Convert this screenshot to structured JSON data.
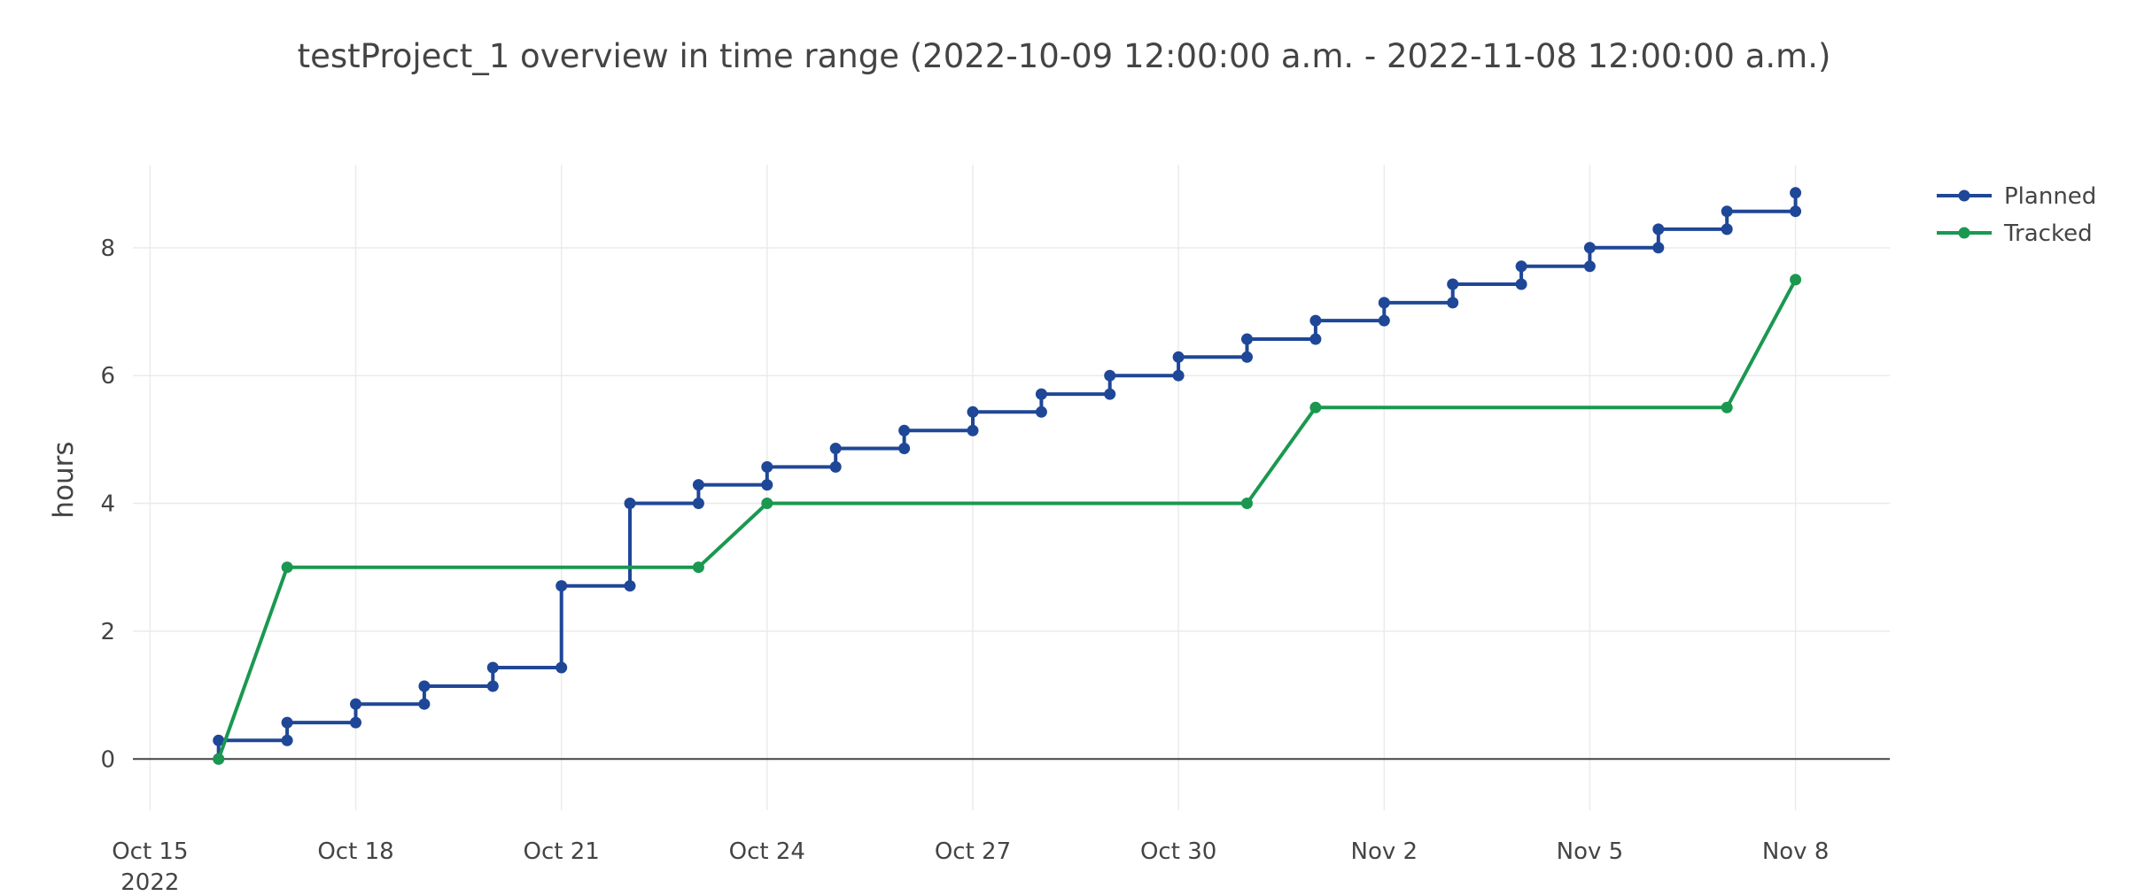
{
  "chart_data": {
    "type": "line",
    "title": "testProject_1 overview in time range (2022-10-09 12:00:00 a.m. - 2022-11-08 12:00:00 a.m.)",
    "xlabel": "",
    "ylabel": "hours",
    "x_ticks": [
      "Oct 15",
      "Oct 18",
      "Oct 21",
      "Oct 24",
      "Oct 27",
      "Oct 30",
      "Nov 2",
      "Nov 5",
      "Nov 8"
    ],
    "x_tick_year": "2022",
    "y_ticks": [
      "0",
      "2",
      "4",
      "6",
      "8"
    ],
    "xlim": [
      "2022-10-14T18:00",
      "2022-11-09T09:00"
    ],
    "ylim": [
      -0.8,
      9.3
    ],
    "grid": true,
    "legend_position": "top-right",
    "series": [
      {
        "name": "Planned",
        "color": "#1f4797",
        "points": [
          [
            "2022-10-16",
            0
          ],
          [
            "2022-10-16",
            0.29
          ],
          [
            "2022-10-17",
            0.29
          ],
          [
            "2022-10-17",
            0.57
          ],
          [
            "2022-10-18",
            0.57
          ],
          [
            "2022-10-18",
            0.86
          ],
          [
            "2022-10-19",
            0.86
          ],
          [
            "2022-10-19",
            1.14
          ],
          [
            "2022-10-20",
            1.14
          ],
          [
            "2022-10-20",
            1.43
          ],
          [
            "2022-10-21",
            1.43
          ],
          [
            "2022-10-21",
            2.71
          ],
          [
            "2022-10-22",
            2.71
          ],
          [
            "2022-10-22",
            4.0
          ],
          [
            "2022-10-23",
            4.0
          ],
          [
            "2022-10-23",
            4.29
          ],
          [
            "2022-10-24",
            4.29
          ],
          [
            "2022-10-24",
            4.57
          ],
          [
            "2022-10-25",
            4.57
          ],
          [
            "2022-10-25",
            4.86
          ],
          [
            "2022-10-26",
            4.86
          ],
          [
            "2022-10-26",
            5.14
          ],
          [
            "2022-10-27",
            5.14
          ],
          [
            "2022-10-27",
            5.43
          ],
          [
            "2022-10-28",
            5.43
          ],
          [
            "2022-10-28",
            5.71
          ],
          [
            "2022-10-29",
            5.71
          ],
          [
            "2022-10-29",
            6.0
          ],
          [
            "2022-10-30",
            6.0
          ],
          [
            "2022-10-30",
            6.29
          ],
          [
            "2022-10-31",
            6.29
          ],
          [
            "2022-10-31",
            6.57
          ],
          [
            "2022-11-01",
            6.57
          ],
          [
            "2022-11-01",
            6.86
          ],
          [
            "2022-11-02",
            6.86
          ],
          [
            "2022-11-02",
            7.14
          ],
          [
            "2022-11-03",
            7.14
          ],
          [
            "2022-11-03",
            7.43
          ],
          [
            "2022-11-04",
            7.43
          ],
          [
            "2022-11-04",
            7.71
          ],
          [
            "2022-11-05",
            7.71
          ],
          [
            "2022-11-05",
            8.0
          ],
          [
            "2022-11-06",
            8.0
          ],
          [
            "2022-11-06",
            8.29
          ],
          [
            "2022-11-07",
            8.29
          ],
          [
            "2022-11-07",
            8.57
          ],
          [
            "2022-11-08",
            8.57
          ],
          [
            "2022-11-08",
            8.86
          ]
        ]
      },
      {
        "name": "Tracked",
        "color": "#1a9850",
        "points": [
          [
            "2022-10-16",
            0
          ],
          [
            "2022-10-17",
            3.0
          ],
          [
            "2022-10-23",
            3.0
          ],
          [
            "2022-10-24",
            4.0
          ],
          [
            "2022-10-31",
            4.0
          ],
          [
            "2022-11-01",
            5.5
          ],
          [
            "2022-11-07",
            5.5
          ],
          [
            "2022-11-08",
            7.5
          ]
        ]
      }
    ]
  }
}
